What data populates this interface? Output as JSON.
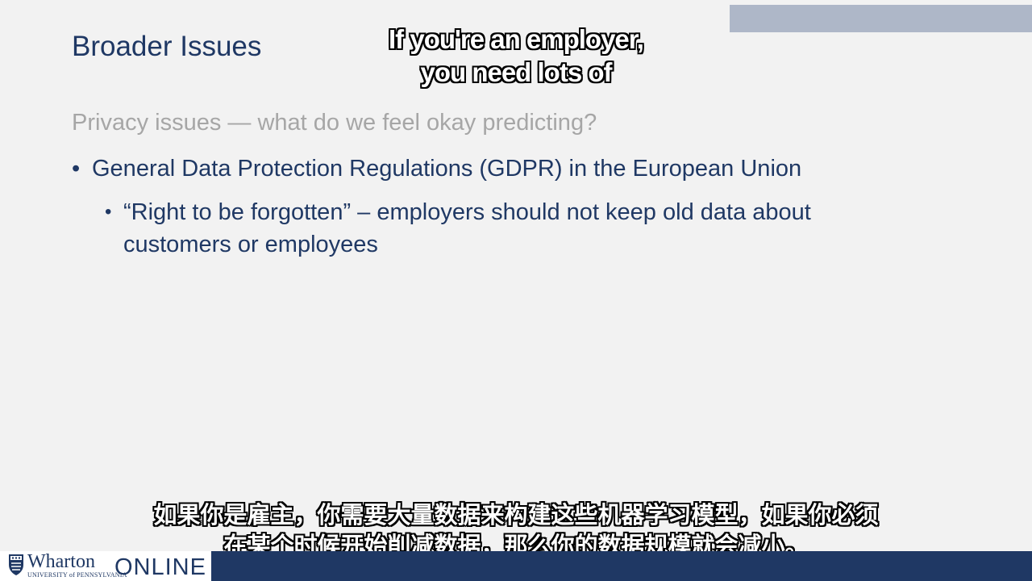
{
  "slide": {
    "title": "Broader Issues",
    "subheading": "Privacy issues — what do we feel okay predicting?",
    "bullets": [
      {
        "text": "General Data Protection Regulations (GDPR) in the European Union",
        "sub": [
          "“Right to be forgotten” – employers should not keep old data about customers or employees"
        ]
      }
    ],
    "bullet_glyph": "•"
  },
  "captions": {
    "en": [
      "If you're an employer,",
      "you need lots of"
    ],
    "zh": [
      "如果你是雇主，你需要大量数据来构建这些机器学习模型，如果你必须",
      "在某个时候开始削减数据，那么你的数据规模就会减小。"
    ]
  },
  "branding": {
    "wordmark": "Wharton",
    "sub": "UNIVERSITY of PENNSYLVANIA",
    "online": "ONLINE"
  },
  "colors": {
    "title": "#1f3864",
    "subheading": "#a6a6a6",
    "background": "#f2f2f2",
    "top_bar": "#aeb7c8",
    "bottom_bar": "#1f3864",
    "logo_bg": "#ffffff"
  },
  "icons": {
    "logo_seal": "penn-shield-icon"
  }
}
